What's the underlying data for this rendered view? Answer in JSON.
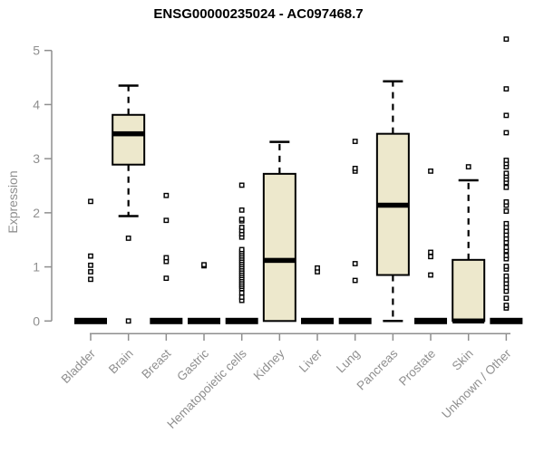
{
  "chart_data": {
    "type": "boxplot",
    "title": "ENSG00000235024 - AC097468.7",
    "ylabel": "Expression",
    "xlabel": "",
    "ylim": [
      0,
      5
    ],
    "yticks": [
      0,
      1,
      2,
      3,
      4,
      5
    ],
    "grid": false,
    "legend": "none",
    "box_fill_color": "#EDE8CC",
    "box_stroke_color": "#000000",
    "axis_color": "#8F8F8F",
    "outlier_marker": "open-square",
    "categories": [
      "Bladder",
      "Brain",
      "Breast",
      "Gastric",
      "Hematopoietic cells",
      "Kidney",
      "Liver",
      "Lung",
      "Pancreas",
      "Prostate",
      "Skin",
      "Unknown / Other"
    ],
    "series": [
      {
        "category": "Bladder",
        "collapsed": true,
        "q1": 0,
        "median": 0,
        "q3": 0,
        "whisker_low": 0,
        "whisker_high": 0,
        "outliers": [
          0.77,
          0.91,
          1.03,
          1.2,
          2.21
        ]
      },
      {
        "category": "Brain",
        "collapsed": false,
        "q1": 2.89,
        "median": 3.46,
        "q3": 3.81,
        "whisker_low": 1.94,
        "whisker_high": 4.35,
        "outliers": [
          1.53,
          0
        ]
      },
      {
        "category": "Breast",
        "collapsed": true,
        "q1": 0,
        "median": 0,
        "q3": 0,
        "whisker_low": 0,
        "whisker_high": 0,
        "outliers": [
          0.79,
          1.1,
          1.17,
          1.86,
          2.32
        ]
      },
      {
        "category": "Gastric",
        "collapsed": true,
        "q1": 0,
        "median": 0,
        "q3": 0,
        "whisker_low": 0,
        "whisker_high": 0,
        "outliers": [
          1.02,
          1.04
        ]
      },
      {
        "category": "Hematopoietic cells",
        "collapsed": true,
        "q1": 0,
        "median": 0,
        "q3": 0,
        "whisker_low": 0,
        "whisker_high": 0,
        "outliers": [
          0.38,
          0.44,
          0.52,
          0.6,
          0.64,
          0.68,
          0.72,
          0.76,
          0.8,
          0.84,
          0.88,
          0.92,
          0.96,
          1.0,
          1.04,
          1.08,
          1.12,
          1.16,
          1.2,
          1.24,
          1.28,
          1.32,
          1.55,
          1.61,
          1.67,
          1.73,
          1.85,
          1.88,
          2.05,
          2.51
        ]
      },
      {
        "category": "Kidney",
        "collapsed": false,
        "q1": 0,
        "median": 1.12,
        "q3": 2.72,
        "whisker_low": 0,
        "whisker_high": 3.31,
        "outliers": []
      },
      {
        "category": "Liver",
        "collapsed": true,
        "q1": 0,
        "median": 0,
        "q3": 0,
        "whisker_low": 0,
        "whisker_high": 0,
        "outliers": [
          0.91,
          0.98
        ]
      },
      {
        "category": "Lung",
        "collapsed": true,
        "q1": 0,
        "median": 0,
        "q3": 0,
        "whisker_low": 0,
        "whisker_high": 0,
        "outliers": [
          0.75,
          1.06,
          2.77,
          2.82,
          3.32
        ]
      },
      {
        "category": "Pancreas",
        "collapsed": false,
        "q1": 0.85,
        "median": 2.14,
        "q3": 3.46,
        "whisker_low": 0,
        "whisker_high": 4.43,
        "outliers": []
      },
      {
        "category": "Prostate",
        "collapsed": true,
        "q1": 0,
        "median": 0,
        "q3": 0,
        "whisker_low": 0,
        "whisker_high": 0,
        "outliers": [
          0.85,
          1.19,
          1.27,
          2.77
        ]
      },
      {
        "category": "Skin",
        "collapsed": false,
        "q1": 0,
        "median": 0,
        "q3": 1.13,
        "whisker_low": 0,
        "whisker_high": 2.6,
        "outliers": [
          2.85
        ]
      },
      {
        "category": "Unknown / Other",
        "collapsed": true,
        "q1": 0,
        "median": 0,
        "q3": 0,
        "whisker_low": 0,
        "whisker_high": 0,
        "outliers": [
          0.24,
          0.29,
          0.42,
          0.55,
          0.62,
          0.69,
          0.76,
          0.83,
          0.96,
          1.01,
          1.15,
          1.21,
          1.3,
          1.36,
          1.45,
          1.52,
          1.59,
          1.66,
          1.73,
          1.8,
          2.03,
          2.14,
          2.2,
          2.47,
          2.56,
          2.62,
          2.68,
          2.73,
          2.85,
          2.91,
          2.97,
          3.48,
          3.8,
          4.29,
          5.21
        ]
      }
    ]
  }
}
